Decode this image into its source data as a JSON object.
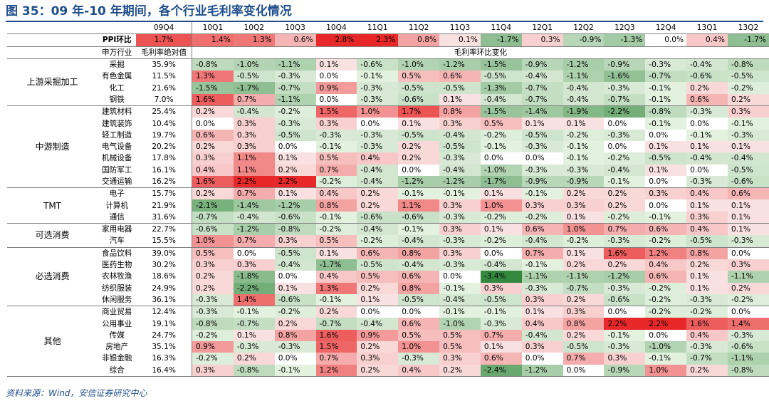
{
  "title": "图 35：09 年-10 年期间，各个行业毛利率变化情况",
  "source_note": "资料来源：Wind，安信证券研究中心",
  "columns": [
    "09Q4",
    "10Q1",
    "10Q2",
    "10Q3",
    "10Q4",
    "11Q1",
    "11Q2",
    "11Q3",
    "11Q4",
    "12Q1",
    "12Q2",
    "12Q3",
    "12Q4",
    "13Q1",
    "13Q2"
  ],
  "ppi": {
    "label": "PPI环比",
    "values": [
      "1.7%",
      "1.4%",
      "1.3%",
      "0.6%",
      "2.8%",
      "2.3%",
      "0.8%",
      "0.1%",
      "-1.7%",
      "0.3%",
      "-0.9%",
      "-1.3%",
      "0.0%",
      "0.4%",
      "-1.7%"
    ]
  },
  "subheader": {
    "industry": "申万行业",
    "absolute": "毛利率绝对值",
    "change": "毛利率环比变化"
  },
  "groups": [
    {
      "name": "上游采掘加工",
      "rows": [
        {
          "industry": "采掘",
          "abs": "35.9%",
          "values": [
            "-0.8%",
            "-1.0%",
            "-1.1%",
            "0.1%",
            "-0.6%",
            "-1.0%",
            "-1.2%",
            "-1.5%",
            "-0.9%",
            "-1.2%",
            "-0.9%",
            "-0.3%",
            "-0.4%",
            "-0.8%"
          ]
        },
        {
          "industry": "有色金属",
          "abs": "11.5%",
          "values": [
            "1.3%",
            "-0.5%",
            "-0.3%",
            "0.0%",
            "-0.1%",
            "0.5%",
            "0.6%",
            "-0.5%",
            "-0.4%",
            "-1.1%",
            "-1.6%",
            "-0.7%",
            "-0.6%",
            "-0.5%"
          ]
        },
        {
          "industry": "化工",
          "abs": "21.6%",
          "values": [
            "-1.5%",
            "-1.7%",
            "-0.7%",
            "0.9%",
            "-0.3%",
            "-0.5%",
            "-0.5%",
            "-1.3%",
            "-0.7%",
            "-0.4%",
            "-0.3%",
            "-0.1%",
            "0.2%",
            "-0.2%"
          ]
        },
        {
          "industry": "钢铁",
          "abs": "7.0%",
          "values": [
            "1.6%",
            "0.7%",
            "-1.1%",
            "0.0%",
            "-0.3%",
            "-0.6%",
            "0.1%",
            "-0.4%",
            "-0.7%",
            "-0.4%",
            "-0.7%",
            "-0.1%",
            "0.6%",
            "0.2%"
          ]
        }
      ]
    },
    {
      "name": "中游制造",
      "rows": [
        {
          "industry": "建筑材料",
          "abs": "25.4%",
          "values": [
            "0.2%",
            "-0.4%",
            "-0.2%",
            "1.5%",
            "1.0%",
            "1.7%",
            "0.8%",
            "-1.5%",
            "-1.4%",
            "-1.9%",
            "-2.2%",
            "-0.8%",
            "-0.3%",
            "0.3%"
          ]
        },
        {
          "industry": "建筑装饰",
          "abs": "10.4%",
          "values": [
            "0.0%",
            "0.3%",
            "-0.3%",
            "0.3%",
            "0.0%",
            "0.1%",
            "0.3%",
            "0.5%",
            "0.1%",
            "0.1%",
            "0.0%",
            "-0.1%",
            "0.0%",
            "-0.1%"
          ]
        },
        {
          "industry": "轻工制造",
          "abs": "19.7%",
          "values": [
            "0.6%",
            "0.3%",
            "-0.5%",
            "-0.3%",
            "-0.3%",
            "-0.5%",
            "-0.4%",
            "-0.2%",
            "-0.5%",
            "-0.2%",
            "-0.3%",
            "0.0%",
            "-0.1%",
            "-0.3%"
          ]
        },
        {
          "industry": "电气设备",
          "abs": "20.2%",
          "values": [
            "0.2%",
            "0.3%",
            "0.0%",
            "-0.1%",
            "-0.3%",
            "0.2%",
            "-0.5%",
            "-0.1%",
            "-0.3%",
            "-0.1%",
            "0.0%",
            "0.1%",
            "0.1%",
            "0.1%"
          ]
        },
        {
          "industry": "机械设备",
          "abs": "17.8%",
          "values": [
            "0.3%",
            "1.1%",
            "0.1%",
            "0.5%",
            "0.4%",
            "0.2%",
            "-0.3%",
            "0.0%",
            "0.0%",
            "-0.1%",
            "-0.2%",
            "-0.5%",
            "-0.4%",
            "-0.4%"
          ]
        },
        {
          "industry": "国防军工",
          "abs": "16.1%",
          "values": [
            "0.4%",
            "1.1%",
            "0.2%",
            "0.7%",
            "-0.4%",
            "0.0%",
            "-0.4%",
            "-1.0%",
            "-0.3%",
            "-0.3%",
            "-0.4%",
            "0.1%",
            "0.0%",
            "-0.5%"
          ]
        },
        {
          "industry": "交通运输",
          "abs": "16.2%",
          "values": [
            "1.6%",
            "2.2%",
            "2.2%",
            "-0.2%",
            "-0.4%",
            "-1.2%",
            "-1.2%",
            "-1.7%",
            "-0.9%",
            "-0.9%",
            "-0.1%",
            "0.0%",
            "-0.3%",
            "-0.6%"
          ]
        }
      ]
    },
    {
      "name": "TMT",
      "rows": [
        {
          "industry": "电子",
          "abs": "15.7%",
          "values": [
            "0.2%",
            "0.7%",
            "0.1%",
            "0.4%",
            "0.2%",
            "-0.1%",
            "-0.1%",
            "0.1%",
            "-0.1%",
            "0.2%",
            "0.2%",
            "0.3%",
            "0.4%",
            "0.6%"
          ]
        },
        {
          "industry": "计算机",
          "abs": "21.9%",
          "values": [
            "-2.1%",
            "-1.4%",
            "-1.2%",
            "0.8%",
            "0.2%",
            "1.1%",
            "0.3%",
            "1.0%",
            "0.3%",
            "0.3%",
            "0.2%",
            "0.0%",
            "0.1%",
            "0.1%"
          ]
        },
        {
          "industry": "通信",
          "abs": "31.6%",
          "values": [
            "-0.7%",
            "-0.4%",
            "-0.6%",
            "-0.1%",
            "-0.6%",
            "-0.6%",
            "-0.3%",
            "-0.2%",
            "-0.2%",
            "0.1%",
            "-0.2%",
            "-0.1%",
            "0.3%",
            "0.1%"
          ]
        }
      ]
    },
    {
      "name": "可选消费",
      "rows": [
        {
          "industry": "家用电器",
          "abs": "22.7%",
          "values": [
            "-0.6%",
            "-1.2%",
            "-0.8%",
            "-0.2%",
            "-0.4%",
            "-0.1%",
            "0.3%",
            "0.1%",
            "0.6%",
            "1.0%",
            "0.7%",
            "0.6%",
            "0.4%",
            "0.1%"
          ]
        },
        {
          "industry": "汽车",
          "abs": "15.5%",
          "values": [
            "1.0%",
            "0.7%",
            "0.3%",
            "0.5%",
            "-0.2%",
            "-0.4%",
            "-0.3%",
            "-0.2%",
            "-0.4%",
            "-0.2%",
            "-0.3%",
            "-0.2%",
            "-0.5%",
            "-0.3%"
          ]
        }
      ]
    },
    {
      "name": "必选消费",
      "rows": [
        {
          "industry": "食品饮料",
          "abs": "39.0%",
          "values": [
            "0.5%",
            "0.0%",
            "-0.5%",
            "0.1%",
            "0.6%",
            "0.8%",
            "0.3%",
            "0.0%",
            "0.7%",
            "0.1%",
            "1.6%",
            "1.2%",
            "0.8%",
            "0.0%"
          ]
        },
        {
          "industry": "医药生物",
          "abs": "30.2%",
          "values": [
            "0.3%",
            "0.3%",
            "-0.4%",
            "-1.7%",
            "-0.5%",
            "-0.4%",
            "-0.3%",
            "-0.4%",
            "-0.1%",
            "0.2%",
            "0.2%",
            "0.4%",
            "0.2%",
            "0.3%"
          ]
        },
        {
          "industry": "农林牧渔",
          "abs": "18.6%",
          "values": [
            "0.2%",
            "-1.8%",
            "0.0%",
            "0.4%",
            "0.5%",
            "0.6%",
            "0.0%",
            "-3.4%",
            "-1.1%",
            "-1.1%",
            "-1.2%",
            "0.6%",
            "0.1%",
            "-1.1%"
          ]
        },
        {
          "industry": "纺织服装",
          "abs": "24.9%",
          "values": [
            "0.2%",
            "-2.2%",
            "0.1%",
            "1.3%",
            "0.2%",
            "0.8%",
            "-0.1%",
            "0.3%",
            "-0.3%",
            "-0.7%",
            "-0.3%",
            "-0.2%",
            "0.1%",
            "0.2%"
          ]
        },
        {
          "industry": "休闲服务",
          "abs": "36.1%",
          "values": [
            "-0.3%",
            "1.4%",
            "-0.6%",
            "-0.1%",
            "0.1%",
            "-0.5%",
            "-0.4%",
            "-0.5%",
            "0.3%",
            "0.2%",
            "-0.6%",
            "-0.2%",
            "-0.3%",
            "-0.2%"
          ]
        }
      ]
    },
    {
      "name": "其他",
      "rows": [
        {
          "industry": "商业贸易",
          "abs": "12.4%",
          "values": [
            "-0.3%",
            "-0.1%",
            "-0.2%",
            "0.2%",
            "0.0%",
            "0.0%",
            "-0.1%",
            "-0.1%",
            "0.1%",
            "0.3%",
            "0.0%",
            "-0.2%",
            "-0.2%",
            "0.0%"
          ]
        },
        {
          "industry": "公用事业",
          "abs": "19.1%",
          "values": [
            "-0.8%",
            "-0.7%",
            "0.2%",
            "-0.7%",
            "-0.4%",
            "0.6%",
            "-1.0%",
            "-0.3%",
            "0.4%",
            "0.8%",
            "2.2%",
            "2.2%",
            "1.6%",
            "1.4%"
          ]
        },
        {
          "industry": "传媒",
          "abs": "24.7%",
          "values": [
            "-0.2%",
            "0.1%",
            "0.8%",
            "1.6%",
            "0.9%",
            "0.5%",
            "0.5%",
            "0.7%",
            "-0.4%",
            "0.2%",
            "-0.1%",
            "0.0%",
            "0.4%",
            "-0.3%"
          ]
        },
        {
          "industry": "房地产",
          "abs": "35.1%",
          "values": [
            "0.9%",
            "-0.3%",
            "-0.3%",
            "1.5%",
            "0.2%",
            "1.0%",
            "0.5%",
            "0.1%",
            "0.3%",
            "-0.5%",
            "-0.3%",
            "-1.0%",
            "-0.3%",
            "-0.6%"
          ]
        },
        {
          "industry": "非银金融",
          "abs": "16.3%",
          "values": [
            "-0.2%",
            "0.2%",
            "0.0%",
            "0.7%",
            "0.3%",
            "-0.3%",
            "0.3%",
            "0.6%",
            "0.0%",
            "0.7%",
            "0.3%",
            "-0.1%",
            "-0.7%",
            "-1.1%"
          ]
        },
        {
          "industry": "综合",
          "abs": "16.4%",
          "values": [
            "0.3%",
            "-0.8%",
            "-0.1%",
            "1.2%",
            "0.2%",
            "0.4%",
            "0.2%",
            "-2.4%",
            "-1.2%",
            "0.0%",
            "-0.9%",
            "1.0%",
            "0.2%",
            "-0.8%"
          ]
        }
      ]
    }
  ]
}
